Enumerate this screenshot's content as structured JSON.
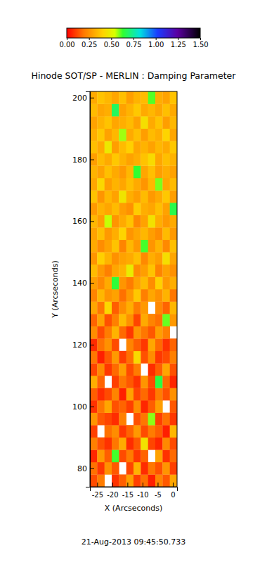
{
  "chart_data": {
    "type": "heatmap",
    "title": "Hinode SOT/SP - MERLIN : Damping Parameter",
    "x_label": "X (Arcseconds)",
    "y_label": "Y (Arcseconds)",
    "annotation": "21-Aug-2013 09:45:50.733",
    "xlim": [
      -27.4,
      1.4
    ],
    "ylim": [
      74,
      202
    ],
    "xticks": [
      -25,
      -20,
      -15,
      -10,
      -5,
      0
    ],
    "yticks": [
      80,
      100,
      120,
      140,
      160,
      180,
      200
    ],
    "x": [
      -26.2,
      -23.8,
      -21.4,
      -19.0,
      -16.6,
      -14.2,
      -11.8,
      -9.4,
      -7.0,
      -4.6,
      -2.2,
      0.2
    ],
    "y": [
      76,
      80,
      84,
      88,
      92,
      96,
      100,
      104,
      108,
      112,
      116,
      120,
      124,
      128,
      132,
      136,
      140,
      144,
      148,
      152,
      156,
      160,
      164,
      168,
      172,
      176,
      180,
      184,
      188,
      192,
      196,
      200
    ],
    "cells": [
      [
        0.12,
        0.2,
        null,
        0.08,
        0.15,
        0.28,
        0.1,
        0.18,
        0.05,
        0.22,
        0.14,
        0.3
      ],
      [
        0.18,
        0.09,
        0.25,
        0.14,
        null,
        0.11,
        0.33,
        0.07,
        0.19,
        0.13,
        0.26,
        0.1
      ],
      [
        0.06,
        0.27,
        0.15,
        0.62,
        0.12,
        0.2,
        0.09,
        0.16,
        null,
        0.29,
        0.08,
        0.17
      ],
      [
        0.21,
        0.13,
        0.08,
        0.19,
        0.31,
        0.07,
        0.14,
        0.45,
        0.11,
        0.06,
        0.23,
        0.12
      ],
      [
        0.1,
        null,
        0.18,
        0.24,
        0.09,
        0.16,
        0.27,
        0.12,
        0.2,
        0.15,
        0.05,
        0.34
      ],
      [
        0.26,
        0.14,
        0.11,
        0.07,
        0.21,
        null,
        0.13,
        0.19,
        0.58,
        0.1,
        0.18,
        0.09
      ],
      [
        0.08,
        0.19,
        0.3,
        0.13,
        0.16,
        0.1,
        0.24,
        0.06,
        0.15,
        0.28,
        null,
        0.14
      ],
      [
        0.15,
        0.07,
        0.12,
        0.22,
        0.05,
        0.29,
        0.11,
        0.17,
        0.09,
        0.2,
        0.13,
        0.25
      ],
      [
        0.32,
        0.16,
        null,
        0.1,
        0.19,
        0.14,
        0.08,
        0.26,
        0.12,
        0.65,
        0.17,
        0.06
      ],
      [
        0.11,
        0.23,
        0.09,
        0.17,
        0.28,
        0.12,
        0.2,
        null,
        0.07,
        0.15,
        0.3,
        0.13
      ],
      [
        0.19,
        0.05,
        0.14,
        0.27,
        0.1,
        0.18,
        0.43,
        0.13,
        0.24,
        0.09,
        0.12,
        0.21
      ],
      [
        0.07,
        0.18,
        0.25,
        0.12,
        null,
        0.22,
        0.15,
        0.09,
        0.3,
        0.17,
        0.08,
        0.16
      ],
      [
        0.24,
        0.12,
        0.2,
        0.33,
        0.17,
        0.09,
        0.26,
        0.19,
        0.14,
        0.28,
        0.21,
        null
      ],
      [
        0.16,
        0.29,
        0.13,
        0.21,
        0.35,
        0.25,
        0.11,
        0.31,
        0.22,
        0.18,
        0.6,
        0.27
      ],
      [
        0.3,
        0.19,
        0.42,
        0.15,
        0.24,
        0.32,
        0.2,
        0.27,
        null,
        0.23,
        0.16,
        0.34
      ],
      [
        0.22,
        0.34,
        0.26,
        0.29,
        0.18,
        0.27,
        0.38,
        0.21,
        0.3,
        0.25,
        0.33,
        0.19
      ],
      [
        0.28,
        0.23,
        0.31,
        0.64,
        0.26,
        0.2,
        0.29,
        0.35,
        0.24,
        0.4,
        0.27,
        0.32
      ],
      [
        0.35,
        0.27,
        0.21,
        0.3,
        0.33,
        0.48,
        0.24,
        0.28,
        0.37,
        0.22,
        0.29,
        0.25
      ],
      [
        0.26,
        0.4,
        0.33,
        0.25,
        0.29,
        0.31,
        0.36,
        0.23,
        0.32,
        0.28,
        0.44,
        0.3
      ],
      [
        0.31,
        0.24,
        0.29,
        0.37,
        0.22,
        0.34,
        0.27,
        0.62,
        0.26,
        0.33,
        0.23,
        0.36
      ],
      [
        0.29,
        0.36,
        0.27,
        0.32,
        0.41,
        0.26,
        0.3,
        0.34,
        0.28,
        0.24,
        0.35,
        0.27
      ],
      [
        0.34,
        0.28,
        0.55,
        0.26,
        0.31,
        0.37,
        0.23,
        0.29,
        0.45,
        0.32,
        0.27,
        0.31
      ],
      [
        0.27,
        0.33,
        0.3,
        0.35,
        0.28,
        0.25,
        0.39,
        0.32,
        0.3,
        0.36,
        0.29,
        0.66
      ],
      [
        0.37,
        0.26,
        0.34,
        0.29,
        0.46,
        0.32,
        0.28,
        0.35,
        0.27,
        0.31,
        0.38,
        0.28
      ],
      [
        0.3,
        0.42,
        0.28,
        0.33,
        0.3,
        0.36,
        0.31,
        0.26,
        0.34,
        0.59,
        0.3,
        0.35
      ],
      [
        0.33,
        0.29,
        0.36,
        0.31,
        0.27,
        0.34,
        0.63,
        0.3,
        0.36,
        0.28,
        0.32,
        0.29
      ],
      [
        0.28,
        0.35,
        0.31,
        0.38,
        0.33,
        0.29,
        0.32,
        0.37,
        0.43,
        0.3,
        0.36,
        0.33
      ],
      [
        0.36,
        0.31,
        0.47,
        0.28,
        0.35,
        0.4,
        0.3,
        0.33,
        0.29,
        0.34,
        0.31,
        0.38
      ],
      [
        0.32,
        0.38,
        0.29,
        0.34,
        0.57,
        0.31,
        0.36,
        0.28,
        0.35,
        0.32,
        0.41,
        0.3
      ],
      [
        0.29,
        0.33,
        0.37,
        0.3,
        0.32,
        0.35,
        0.29,
        0.44,
        0.31,
        0.37,
        0.28,
        0.34
      ],
      [
        0.35,
        0.3,
        0.32,
        0.68,
        0.29,
        0.33,
        0.38,
        0.31,
        0.34,
        0.3,
        0.36,
        0.31
      ],
      [
        0.31,
        0.37,
        0.34,
        0.3,
        0.36,
        0.28,
        0.33,
        0.35,
        0.61,
        0.32,
        0.29,
        0.37
      ]
    ],
    "colorbar": {
      "range": [
        0,
        1.5
      ],
      "ticks": [
        {
          "value": 0,
          "label": "0.00"
        },
        {
          "value": 0.25,
          "label": "0.25"
        },
        {
          "value": 0.5,
          "label": "0.50"
        },
        {
          "value": 0.75,
          "label": "0.75"
        },
        {
          "value": 1,
          "label": "1.00"
        },
        {
          "value": 1.25,
          "label": "1.25"
        },
        {
          "value": 1.5,
          "label": "1.50"
        }
      ]
    }
  }
}
